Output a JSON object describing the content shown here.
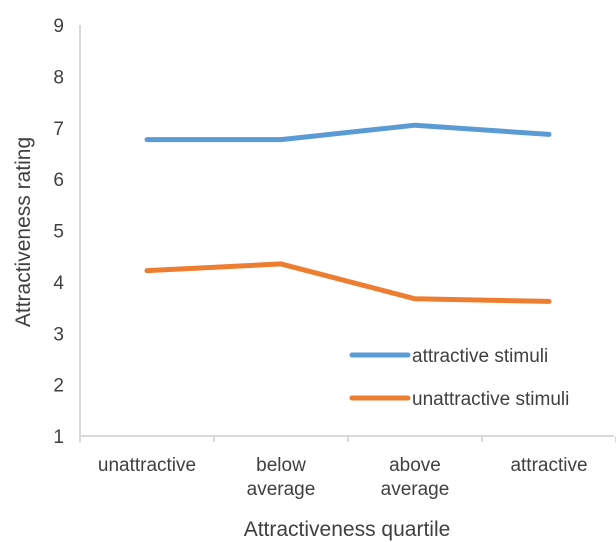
{
  "chart_data": {
    "type": "line",
    "title": "",
    "xlabel": "Attractiveness quartile",
    "ylabel": "Attractiveness rating",
    "categories": [
      [
        "unattractive"
      ],
      [
        "below",
        "average"
      ],
      [
        "above",
        "average"
      ],
      [
        "attractive"
      ]
    ],
    "yticks": [
      "1",
      "2",
      "3",
      "4",
      "5",
      "6",
      "7",
      "8",
      "9"
    ],
    "ylim": [
      1,
      9
    ],
    "grid": false,
    "legend_position": "bottom-right",
    "series": [
      {
        "name": "attractive stimuli",
        "color": "#5B9BD5",
        "values": [
          6.77,
          6.77,
          7.05,
          6.87
        ]
      },
      {
        "name": "unattractive stimuli",
        "color": "#ED7D31",
        "values": [
          4.22,
          4.35,
          3.67,
          3.62
        ]
      }
    ],
    "axis_color": "#D9D9D9",
    "text_color": "#404040"
  }
}
